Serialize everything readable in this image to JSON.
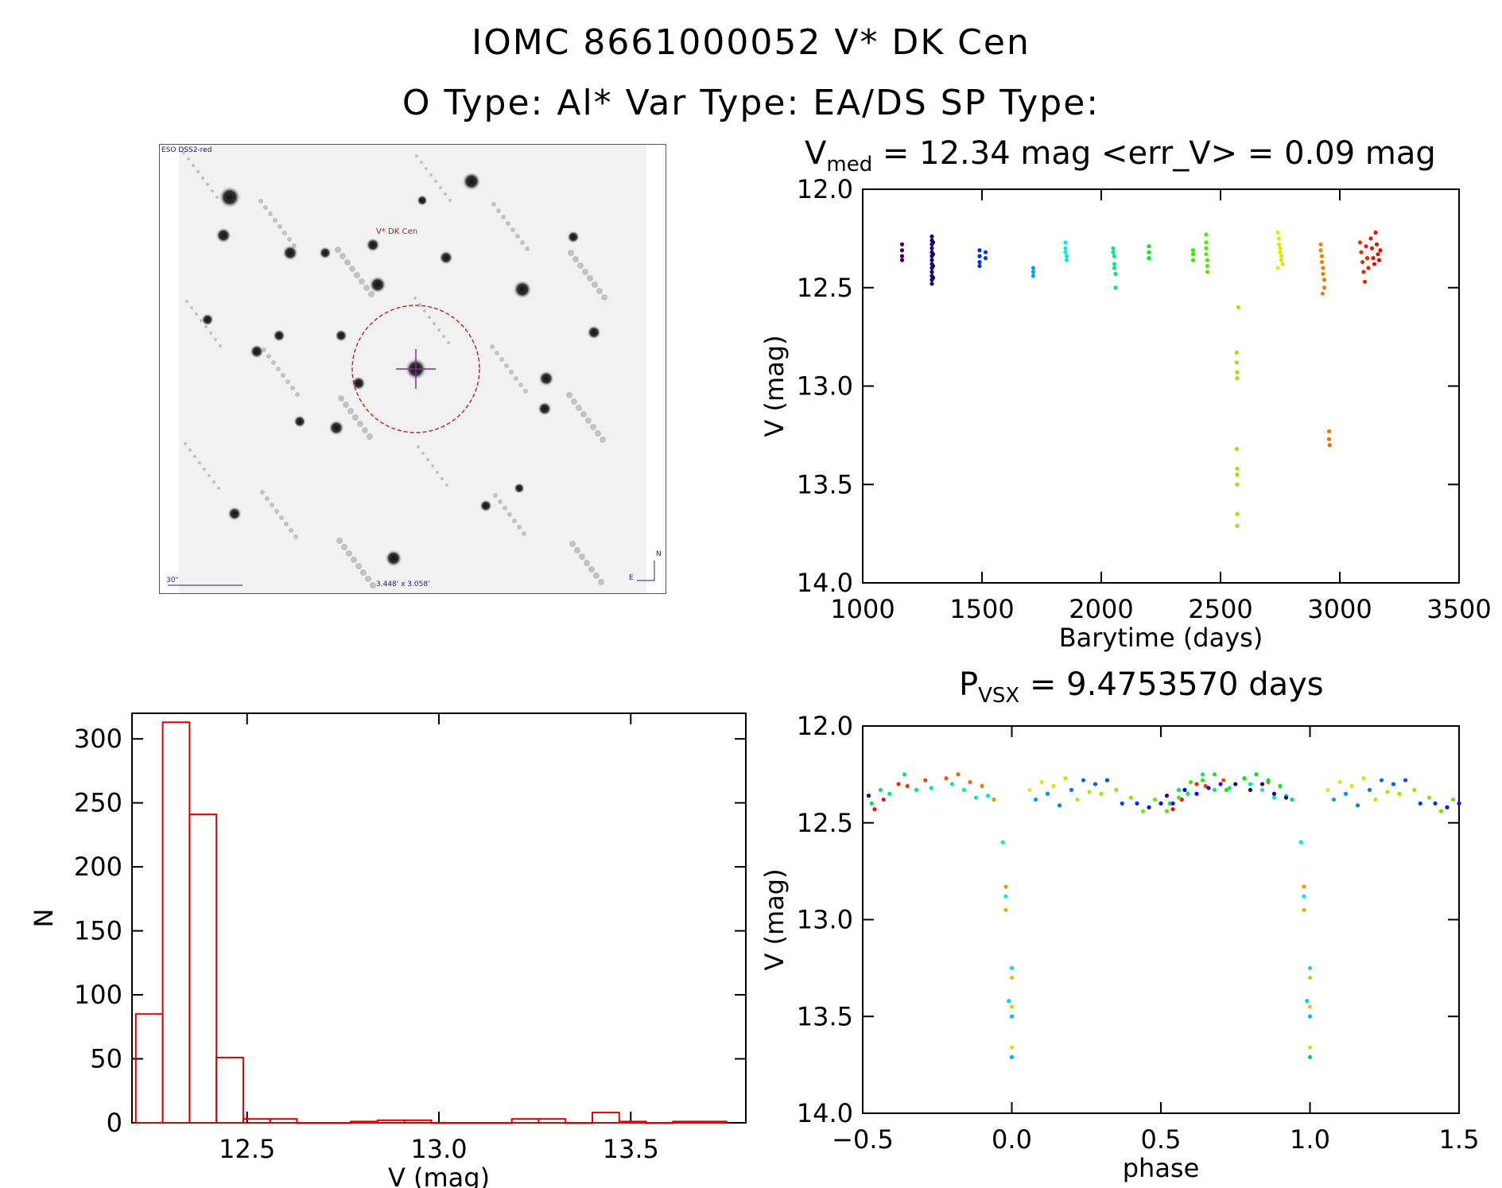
{
  "header": {
    "title_line1": "IOMC 8661000052   V* DK Cen",
    "title_line2": "O Type: Al*  Var Type: EA/DS  SP Type:"
  },
  "finder": {
    "top_left_label": "ESO DSS2-red",
    "target_label": "V* DK Cen",
    "scale_label": "30\"",
    "fov_label": "3.448' x 3.058'",
    "north_label": "N",
    "east_label": "E",
    "circle_color": "#c62828",
    "crosshair_color": "#8e24aa"
  },
  "lightcurve": {
    "title_prefix": "V",
    "title_sub": "med",
    "title_rest": " = 12.34 mag <err_V> = 0.09 mag"
  },
  "phased": {
    "title_prefix": "P",
    "title_sub": "VSX",
    "title_rest": " = 9.4753570 days"
  },
  "chart_data": [
    {
      "id": "lightcurve",
      "type": "scatter",
      "xlabel": "Barytime (days)",
      "ylabel": "V (mag)",
      "xlim": [
        1000,
        3500
      ],
      "ylim": [
        14.0,
        12.0
      ],
      "y_inverted": true,
      "xticks": [
        1000,
        1500,
        2000,
        2500,
        3000,
        3500
      ],
      "yticks": [
        12.0,
        12.5,
        13.0,
        13.5,
        14.0
      ],
      "xtick_labels": [
        "1000",
        "1500",
        "2000",
        "2500",
        "3000",
        "3500"
      ],
      "ytick_labels": [
        "12.0",
        "12.5",
        "13.0",
        "13.5",
        "14.0"
      ],
      "color_scale": "rainbow by time",
      "points": [
        [
          1165,
          12.28
        ],
        [
          1165,
          12.31
        ],
        [
          1165,
          12.34
        ],
        [
          1165,
          12.36
        ],
        [
          1290,
          12.24
        ],
        [
          1290,
          12.26
        ],
        [
          1290,
          12.28
        ],
        [
          1290,
          12.3
        ],
        [
          1290,
          12.32
        ],
        [
          1290,
          12.34
        ],
        [
          1290,
          12.36
        ],
        [
          1290,
          12.38
        ],
        [
          1290,
          12.4
        ],
        [
          1290,
          12.42
        ],
        [
          1290,
          12.44
        ],
        [
          1290,
          12.46
        ],
        [
          1290,
          12.48
        ],
        [
          1295,
          12.27
        ],
        [
          1295,
          12.33
        ],
        [
          1295,
          12.39
        ],
        [
          1295,
          12.45
        ],
        [
          1490,
          12.31
        ],
        [
          1490,
          12.34
        ],
        [
          1490,
          12.37
        ],
        [
          1490,
          12.39
        ],
        [
          1515,
          12.32
        ],
        [
          1515,
          12.35
        ],
        [
          1715,
          12.4
        ],
        [
          1715,
          12.42
        ],
        [
          1715,
          12.44
        ],
        [
          1850,
          12.27
        ],
        [
          1850,
          12.3
        ],
        [
          1850,
          12.32
        ],
        [
          1855,
          12.34
        ],
        [
          1855,
          12.36
        ],
        [
          2050,
          12.3
        ],
        [
          2050,
          12.32
        ],
        [
          2055,
          12.34
        ],
        [
          2055,
          12.38
        ],
        [
          2055,
          12.4
        ],
        [
          2060,
          12.43
        ],
        [
          2060,
          12.5
        ],
        [
          2200,
          12.29
        ],
        [
          2200,
          12.32
        ],
        [
          2200,
          12.35
        ],
        [
          2385,
          12.31
        ],
        [
          2385,
          12.33
        ],
        [
          2385,
          12.36
        ],
        [
          2440,
          12.23
        ],
        [
          2440,
          12.27
        ],
        [
          2440,
          12.3
        ],
        [
          2440,
          12.33
        ],
        [
          2445,
          12.36
        ],
        [
          2445,
          12.39
        ],
        [
          2445,
          12.42
        ],
        [
          2575,
          12.6
        ],
        [
          2568,
          12.83
        ],
        [
          2568,
          12.88
        ],
        [
          2570,
          12.93
        ],
        [
          2570,
          12.96
        ],
        [
          2568,
          13.32
        ],
        [
          2570,
          13.42
        ],
        [
          2570,
          13.45
        ],
        [
          2570,
          13.5
        ],
        [
          2570,
          13.65
        ],
        [
          2570,
          13.71
        ],
        [
          2740,
          12.22
        ],
        [
          2745,
          12.25
        ],
        [
          2745,
          12.28
        ],
        [
          2750,
          12.3
        ],
        [
          2750,
          12.32
        ],
        [
          2755,
          12.34
        ],
        [
          2755,
          12.36
        ],
        [
          2760,
          12.38
        ],
        [
          2740,
          12.4
        ],
        [
          2920,
          12.28
        ],
        [
          2920,
          12.31
        ],
        [
          2925,
          12.34
        ],
        [
          2925,
          12.37
        ],
        [
          2930,
          12.4
        ],
        [
          2930,
          12.43
        ],
        [
          2935,
          12.46
        ],
        [
          2935,
          12.5
        ],
        [
          2928,
          12.53
        ],
        [
          2955,
          13.23
        ],
        [
          2955,
          13.27
        ],
        [
          2958,
          13.3
        ],
        [
          3085,
          12.27
        ],
        [
          3090,
          12.32
        ],
        [
          3095,
          12.37
        ],
        [
          3100,
          12.42
        ],
        [
          3105,
          12.47
        ],
        [
          3110,
          12.29
        ],
        [
          3115,
          12.35
        ],
        [
          3120,
          12.4
        ],
        [
          3130,
          12.25
        ],
        [
          3135,
          12.3
        ],
        [
          3140,
          12.35
        ],
        [
          3145,
          12.38
        ],
        [
          3150,
          12.22
        ],
        [
          3155,
          12.28
        ],
        [
          3160,
          12.33
        ],
        [
          3165,
          12.36
        ],
        [
          3170,
          12.31
        ]
      ]
    },
    {
      "id": "histogram",
      "type": "bar",
      "xlabel": "V (mag)",
      "ylabel": "N",
      "xlim": [
        12.2,
        13.8
      ],
      "ylim": [
        0,
        320
      ],
      "xticks": [
        12.5,
        13.0,
        13.5
      ],
      "yticks": [
        0,
        50,
        100,
        150,
        200,
        250,
        300
      ],
      "xtick_labels": [
        "12.5",
        "13.0",
        "13.5"
      ],
      "ytick_labels": [
        "0",
        "50",
        "100",
        "150",
        "200",
        "250",
        "300"
      ],
      "bar_color": "#e00000",
      "bin_width": 0.07,
      "bins": [
        12.21,
        12.28,
        12.35,
        12.42,
        12.49,
        12.56,
        12.63,
        12.7,
        12.77,
        12.84,
        12.91,
        12.98,
        13.05,
        13.12,
        13.19,
        13.26,
        13.33,
        13.4,
        13.47,
        13.54,
        13.61,
        13.68
      ],
      "values": [
        85,
        313,
        241,
        51,
        3,
        3,
        0,
        0,
        1,
        2,
        2,
        0,
        0,
        0,
        3,
        3,
        0,
        8,
        1,
        0,
        1,
        1
      ]
    },
    {
      "id": "phased",
      "type": "scatter",
      "xlabel": "phase",
      "ylabel": "V (mag)",
      "xlim": [
        -0.5,
        1.5
      ],
      "ylim": [
        14.0,
        12.0
      ],
      "y_inverted": true,
      "xticks": [
        -0.5,
        0.0,
        0.5,
        1.0,
        1.5
      ],
      "yticks": [
        12.0,
        12.5,
        13.0,
        13.5,
        14.0
      ],
      "xtick_labels": [
        "−0.5",
        "0.0",
        "0.5",
        "1.0",
        "1.5"
      ],
      "ytick_labels": [
        "12.0",
        "12.5",
        "13.0",
        "13.5",
        "14.0"
      ],
      "color_scale": "rainbow by time",
      "period_days": 9.475357,
      "phase_points": [
        [
          -0.48,
          12.36
        ],
        [
          -0.47,
          12.4
        ],
        [
          -0.46,
          12.43
        ],
        [
          -0.44,
          12.33
        ],
        [
          -0.43,
          12.38
        ],
        [
          -0.41,
          12.35
        ],
        [
          -0.38,
          12.3
        ],
        [
          -0.36,
          12.25
        ],
        [
          -0.35,
          12.31
        ],
        [
          -0.32,
          12.33
        ],
        [
          -0.29,
          12.28
        ],
        [
          -0.27,
          12.32
        ],
        [
          -0.22,
          12.27
        ],
        [
          -0.2,
          12.3
        ],
        [
          -0.18,
          12.25
        ],
        [
          -0.16,
          12.33
        ],
        [
          -0.14,
          12.29
        ],
        [
          -0.12,
          12.37
        ],
        [
          -0.1,
          12.31
        ],
        [
          -0.08,
          12.36
        ],
        [
          -0.06,
          12.38
        ],
        [
          -0.03,
          12.6
        ],
        [
          -0.02,
          12.83
        ],
        [
          -0.02,
          12.88
        ],
        [
          -0.02,
          12.95
        ],
        [
          0.0,
          13.25
        ],
        [
          0.0,
          13.3
        ],
        [
          -0.01,
          13.42
        ],
        [
          0.0,
          13.45
        ],
        [
          0.0,
          13.5
        ],
        [
          0.0,
          13.66
        ],
        [
          0.0,
          13.71
        ],
        [
          0.06,
          12.33
        ],
        [
          0.08,
          12.38
        ],
        [
          0.1,
          12.29
        ],
        [
          0.12,
          12.35
        ],
        [
          0.14,
          12.31
        ],
        [
          0.16,
          12.41
        ],
        [
          0.18,
          12.27
        ],
        [
          0.2,
          12.33
        ],
        [
          0.22,
          12.38
        ],
        [
          0.24,
          12.28
        ],
        [
          0.26,
          12.34
        ],
        [
          0.28,
          12.3
        ],
        [
          0.3,
          12.35
        ],
        [
          0.32,
          12.28
        ],
        [
          0.35,
          12.33
        ],
        [
          0.37,
          12.4
        ],
        [
          0.4,
          12.37
        ],
        [
          0.42,
          12.4
        ],
        [
          0.44,
          12.44
        ],
        [
          0.46,
          12.42
        ],
        [
          0.48,
          12.38
        ],
        [
          0.5,
          12.4
        ],
        [
          0.52,
          12.44
        ],
        [
          0.54,
          12.4
        ],
        [
          0.56,
          12.37
        ],
        [
          0.58,
          12.33
        ],
        [
          0.6,
          12.29
        ],
        [
          0.62,
          12.35
        ],
        [
          0.64,
          12.28
        ],
        [
          0.66,
          12.32
        ],
        [
          0.68,
          12.25
        ],
        [
          0.7,
          12.3
        ],
        [
          0.72,
          12.33
        ],
        [
          0.75,
          12.3
        ],
        [
          0.78,
          12.27
        ],
        [
          0.8,
          12.33
        ],
        [
          0.82,
          12.25
        ],
        [
          0.84,
          12.3
        ],
        [
          0.86,
          12.28
        ],
        [
          0.88,
          12.35
        ],
        [
          0.9,
          12.31
        ],
        [
          0.92,
          12.37
        ],
        [
          0.94,
          12.38
        ]
      ]
    }
  ]
}
